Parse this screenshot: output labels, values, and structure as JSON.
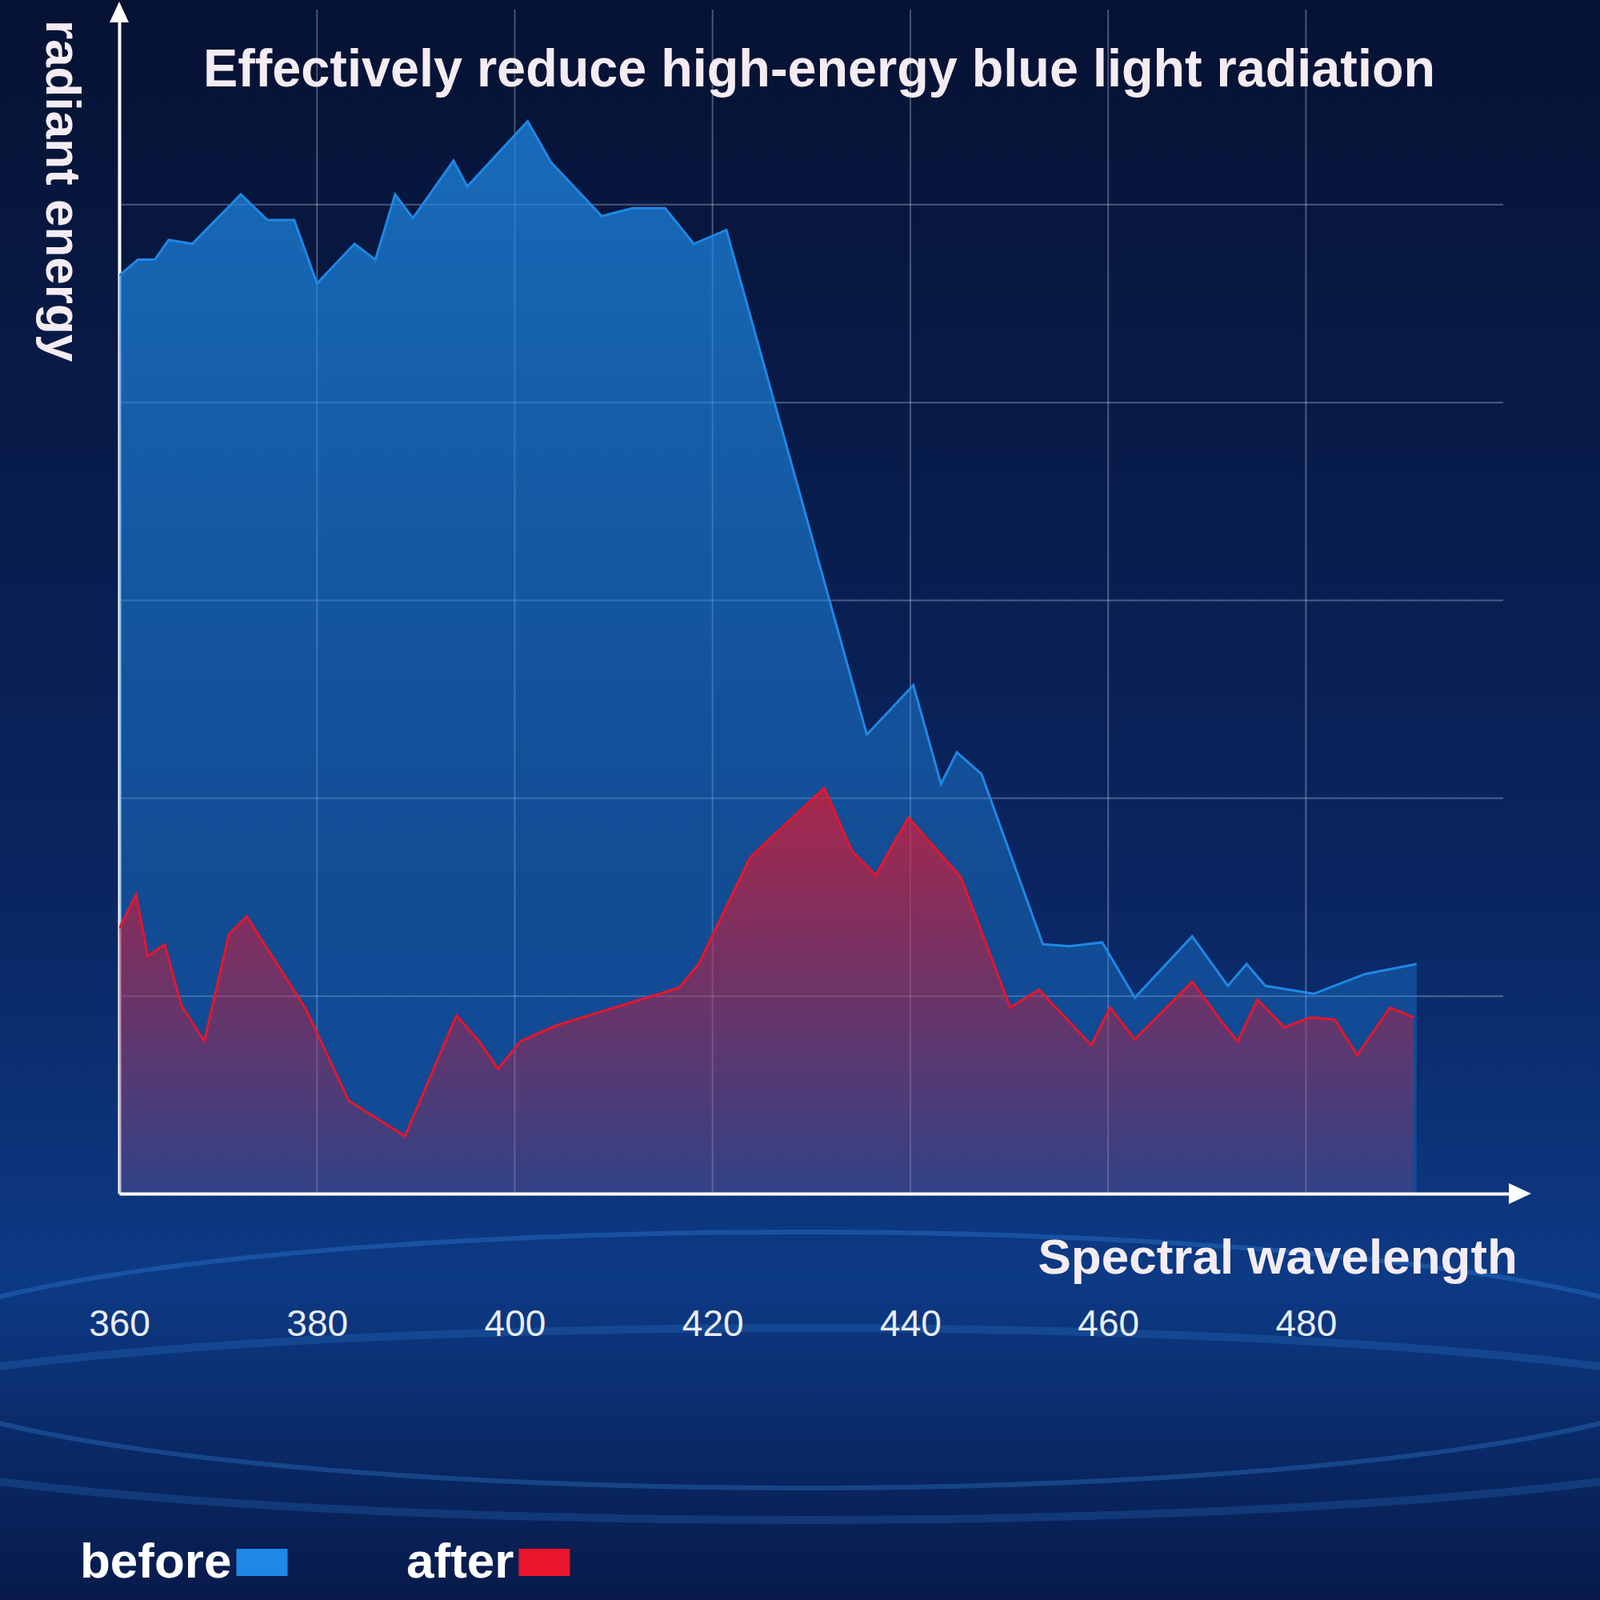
{
  "chart_data": {
    "type": "area",
    "title": "Effectively reduce high-energy blue light radiation",
    "x_label": "Spectral wavelength",
    "y_label": "radiant energy",
    "xlim": [
      360,
      501
    ],
    "xticks": [
      360,
      380,
      400,
      420,
      440,
      460,
      480
    ],
    "ylim": [
      0,
      6
    ],
    "yticks": [
      0,
      1,
      2,
      3,
      4,
      5
    ],
    "grid": true,
    "tick_labels": "x",
    "legend": "bottom-left",
    "series": [
      {
        "name": "before",
        "color": "#1e88e5",
        "x": [
          360,
          361.9,
          363.6,
          365.0,
          367.4,
          372.3,
          375.0,
          377.7,
          380.0,
          383.8,
          385.9,
          387.9,
          389.7,
          393.8,
          395.2,
          401.3,
          403.7,
          408.8,
          411.9,
          415.2,
          418.1,
          421.4,
          435.6,
          440.3,
          443.1,
          444.7,
          447.2,
          453.4,
          456.1,
          459.4,
          462.7,
          468.5,
          472.1,
          474.0,
          475.9,
          480.8,
          486.0,
          491.2
        ],
        "values": [
          4.64,
          4.72,
          4.72,
          4.82,
          4.8,
          5.05,
          4.92,
          4.92,
          4.6,
          4.8,
          4.72,
          5.05,
          4.93,
          5.22,
          5.09,
          5.42,
          5.21,
          4.94,
          4.98,
          4.98,
          4.8,
          4.87,
          2.32,
          2.57,
          2.07,
          2.23,
          2.12,
          1.26,
          1.25,
          1.27,
          0.99,
          1.3,
          1.05,
          1.16,
          1.05,
          1.01,
          1.11,
          1.16
        ]
      },
      {
        "name": "after",
        "color": "#e8152b",
        "x": [
          360,
          361.7,
          362.9,
          364.6,
          366.3,
          368.6,
          371.1,
          372.9,
          378.9,
          383.2,
          388.9,
          394.1,
          396.4,
          398.3,
          400.6,
          404.2,
          416.6,
          418.6,
          423.8,
          431.3,
          434.1,
          436.5,
          439.8,
          445.1,
          450.1,
          453.0,
          458.3,
          460.2,
          462.7,
          468.5,
          471.6,
          473.1,
          475.1,
          477.8,
          480.5,
          482.9,
          485.2,
          488.5,
          490.9
        ],
        "values": [
          1.34,
          1.51,
          1.2,
          1.26,
          0.95,
          0.77,
          1.31,
          1.4,
          0.93,
          0.47,
          0.29,
          0.9,
          0.77,
          0.63,
          0.77,
          0.85,
          1.04,
          1.16,
          1.7,
          2.05,
          1.73,
          1.61,
          1.9,
          1.6,
          0.94,
          1.03,
          0.75,
          0.94,
          0.78,
          1.07,
          0.86,
          0.77,
          0.98,
          0.84,
          0.89,
          0.88,
          0.7,
          0.94,
          0.89
        ]
      }
    ]
  }
}
